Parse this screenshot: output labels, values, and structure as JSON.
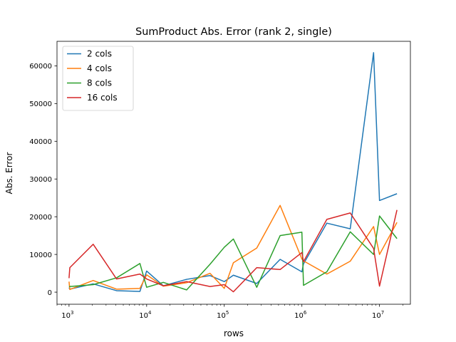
{
  "chart_data": {
    "type": "line",
    "title": "SumProduct Abs. Error (rank 2, single)",
    "xlabel": "rows",
    "ylabel": "Abs. Error",
    "xscale": "log",
    "xlim": [
      700,
      25000000
    ],
    "ylim": [
      -3200,
      66500
    ],
    "x_ticks": [
      {
        "value": 1000,
        "base": "10",
        "exp": "3"
      },
      {
        "value": 10000,
        "base": "10",
        "exp": "4"
      },
      {
        "value": 100000,
        "base": "10",
        "exp": "5"
      },
      {
        "value": 1000000,
        "base": "10",
        "exp": "6"
      },
      {
        "value": 10000000,
        "base": "10",
        "exp": "7"
      }
    ],
    "y_ticks": [
      {
        "value": 0,
        "label": "0"
      },
      {
        "value": 10000,
        "label": "10000"
      },
      {
        "value": 20000,
        "label": "20000"
      },
      {
        "value": 30000,
        "label": "30000"
      },
      {
        "value": 40000,
        "label": "40000"
      },
      {
        "value": 50000,
        "label": "50000"
      },
      {
        "value": 60000,
        "label": "60000"
      }
    ],
    "grid": false,
    "legend_position": "top-left",
    "series": [
      {
        "name": "2 cols",
        "color": "#1f77b4",
        "x": [
          1000,
          1024,
          2048,
          4096,
          8192,
          10000,
          16384,
          32768,
          65536,
          100000,
          131072,
          262144,
          524288,
          1000000,
          1048576,
          2097152,
          4194304,
          8388608,
          10000000,
          16777216
        ],
        "y": [
          1200,
          800,
          2200,
          400,
          200,
          5600,
          1700,
          3400,
          4400,
          2800,
          4500,
          2300,
          8700,
          5400,
          7500,
          18300,
          16800,
          63500,
          24300,
          26100
        ]
      },
      {
        "name": "4 cols",
        "color": "#ff7f0e",
        "x": [
          1000,
          1024,
          2048,
          4096,
          8192,
          10000,
          16384,
          32768,
          65536,
          100000,
          131072,
          262144,
          524288,
          1000000,
          1048576,
          2097152,
          4194304,
          8388608,
          10000000,
          16777216
        ],
        "y": [
          2800,
          700,
          3100,
          800,
          1000,
          4600,
          1600,
          2500,
          5000,
          1000,
          7800,
          11700,
          23000,
          8800,
          8300,
          4800,
          8200,
          17400,
          10000,
          18500
        ]
      },
      {
        "name": "8 cols",
        "color": "#2ca02c",
        "x": [
          1000,
          1024,
          2048,
          4096,
          8192,
          10000,
          16384,
          32768,
          65536,
          100000,
          131072,
          262144,
          524288,
          1000000,
          1048576,
          2097152,
          4194304,
          8388608,
          10000000,
          16777216
        ],
        "y": [
          1500,
          1500,
          2000,
          3800,
          7600,
          1300,
          2600,
          600,
          7400,
          11900,
          14100,
          1300,
          15000,
          15900,
          1800,
          5400,
          16000,
          10000,
          20200,
          14200
        ]
      },
      {
        "name": "16 cols",
        "color": "#d62728",
        "x": [
          1000,
          1024,
          2048,
          4096,
          8192,
          10000,
          16384,
          32768,
          65536,
          100000,
          131072,
          262144,
          524288,
          1000000,
          1048576,
          2097152,
          4194304,
          8388608,
          10000000,
          16777216
        ],
        "y": [
          3700,
          6500,
          12700,
          3500,
          4800,
          3500,
          1700,
          2800,
          1500,
          2000,
          100,
          6500,
          6000,
          10500,
          8100,
          19300,
          21000,
          11600,
          1600,
          21800
        ]
      }
    ]
  }
}
